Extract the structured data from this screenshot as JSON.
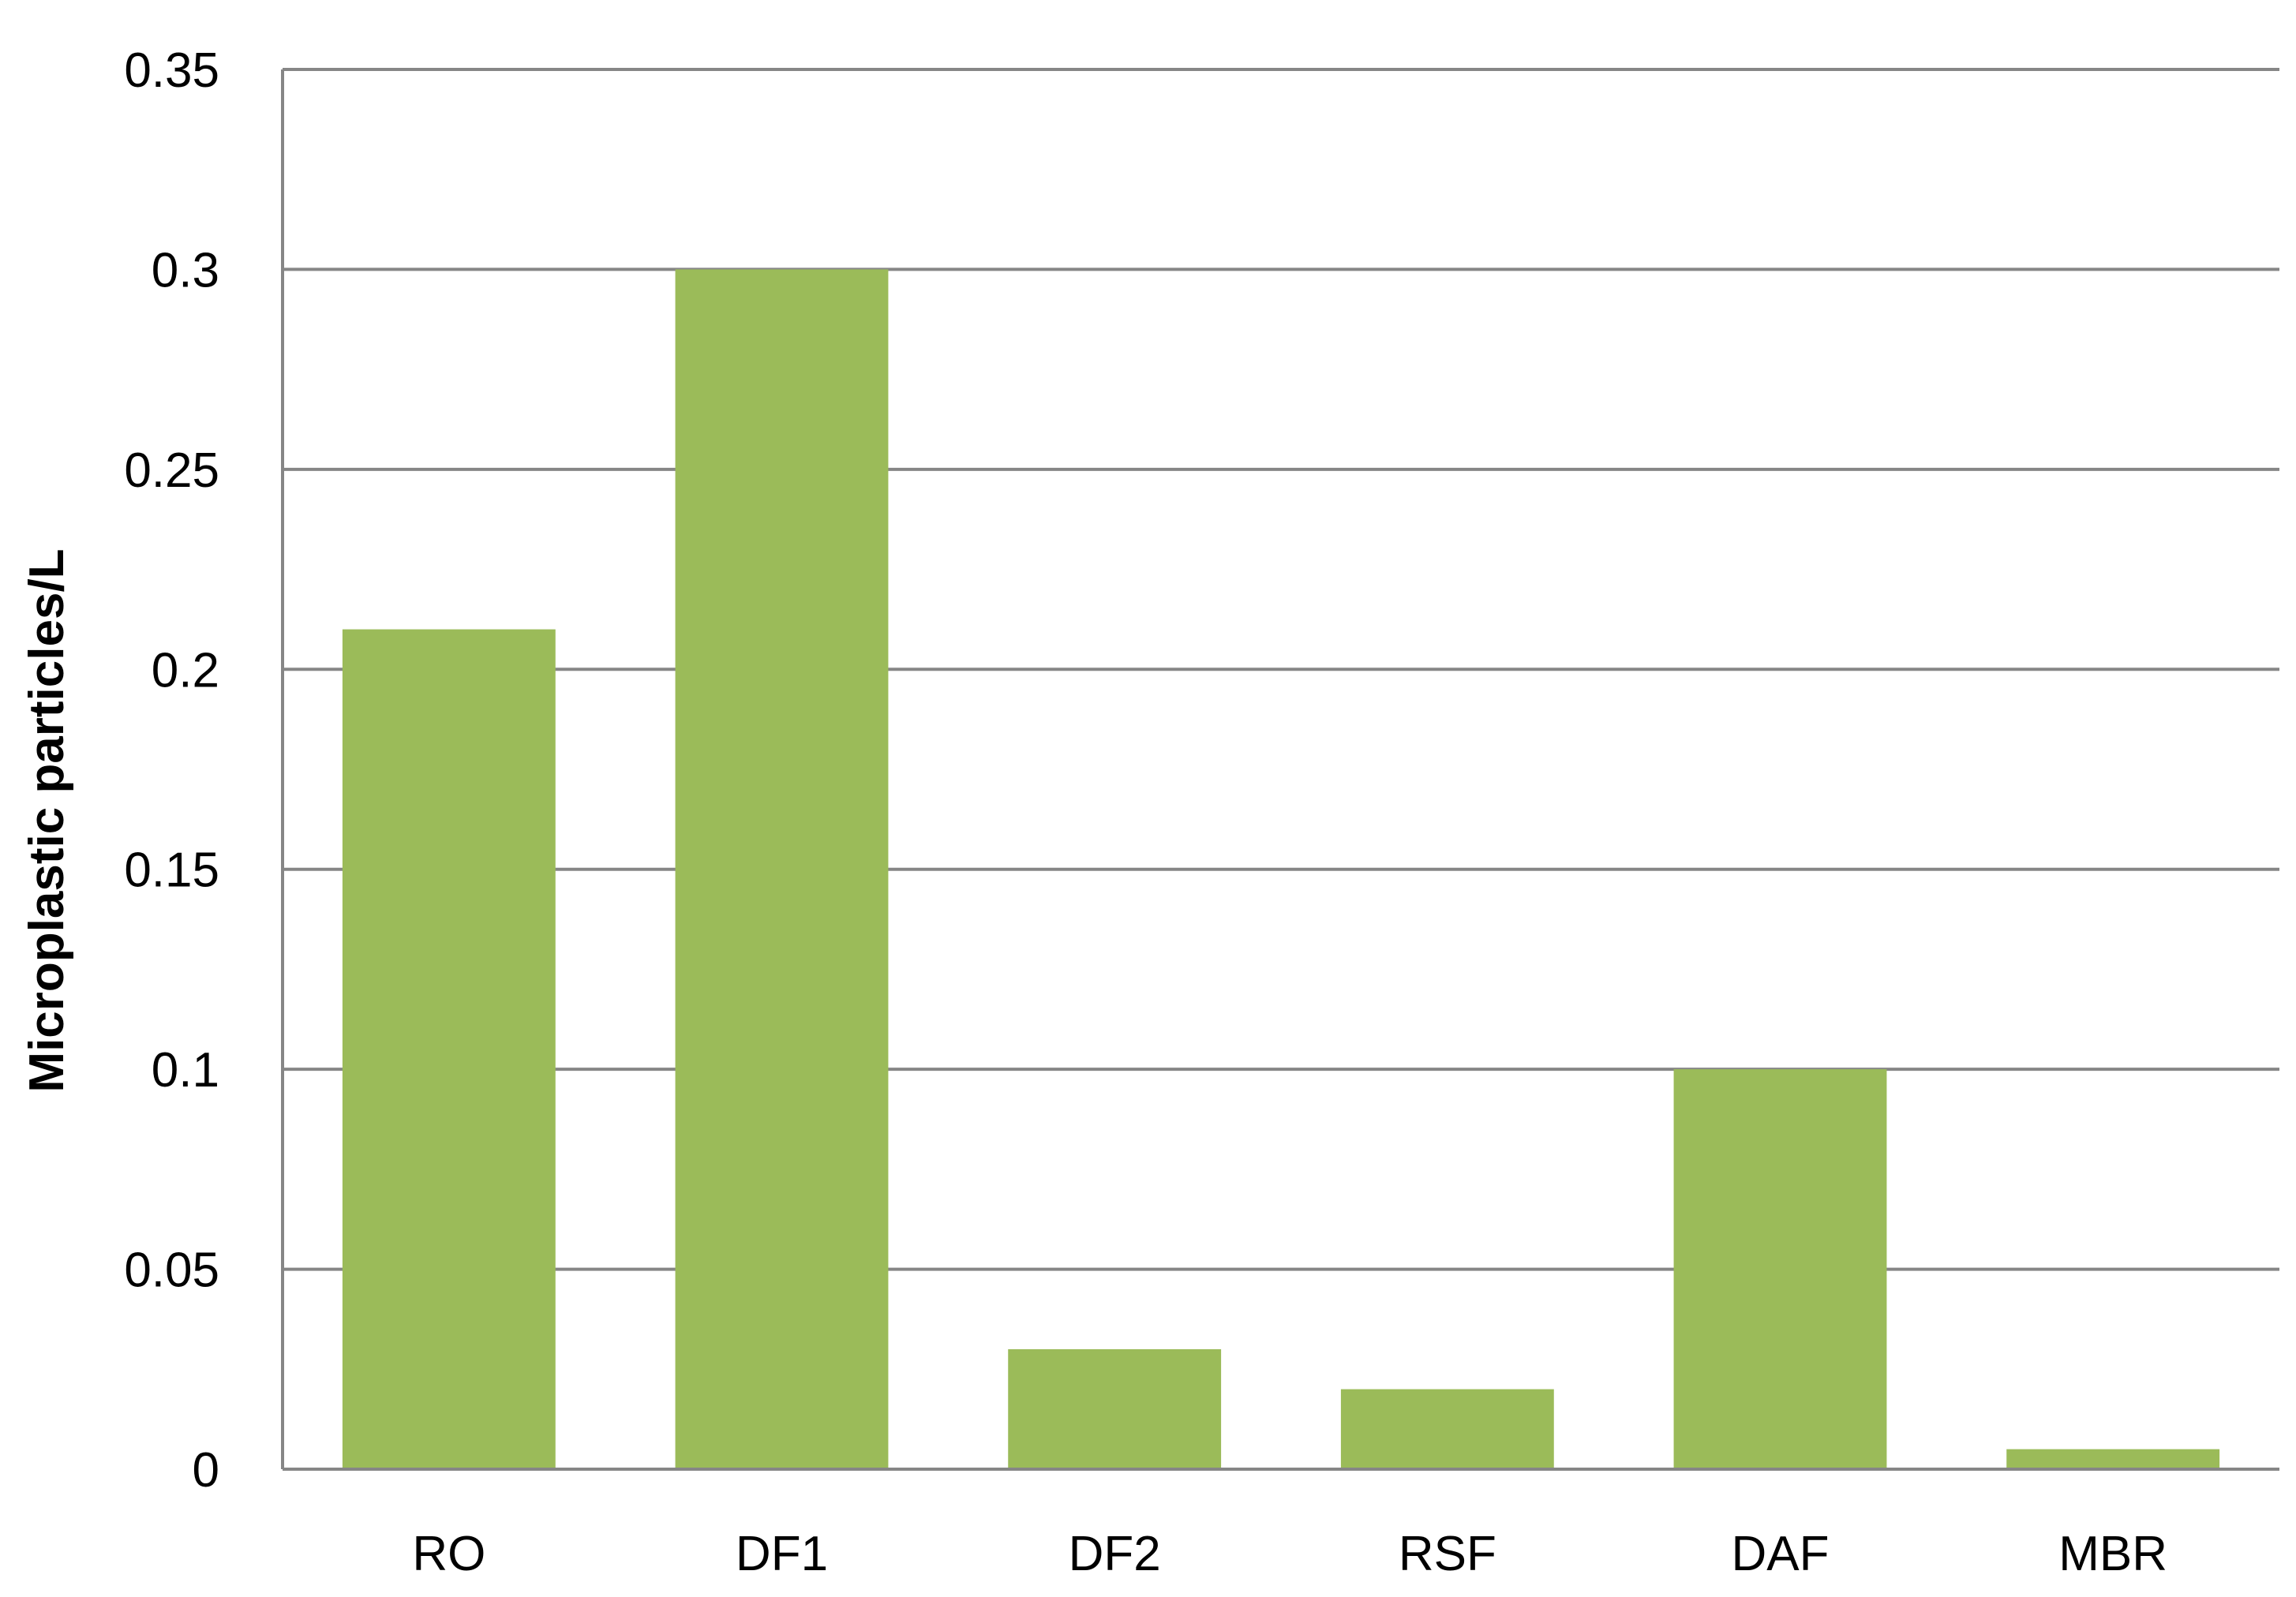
{
  "chart_data": {
    "type": "bar",
    "categories": [
      "RO",
      "DF1",
      "DF2",
      "RSF",
      "DAF",
      "MBR"
    ],
    "values": [
      0.21,
      0.3,
      0.03,
      0.02,
      0.1,
      0.005
    ],
    "title": "",
    "xlabel": "",
    "ylabel": "Microplastic particles/L",
    "ylim": [
      0,
      0.35
    ],
    "yticks": [
      "0",
      "0.05",
      "0.1",
      "0.15",
      "0.2",
      "0.25",
      "0.3",
      "0.35"
    ],
    "grid": true,
    "legend": "none",
    "colors": {
      "bar": "#9BBB59",
      "grid": "#868686",
      "axis": "#868686"
    }
  }
}
